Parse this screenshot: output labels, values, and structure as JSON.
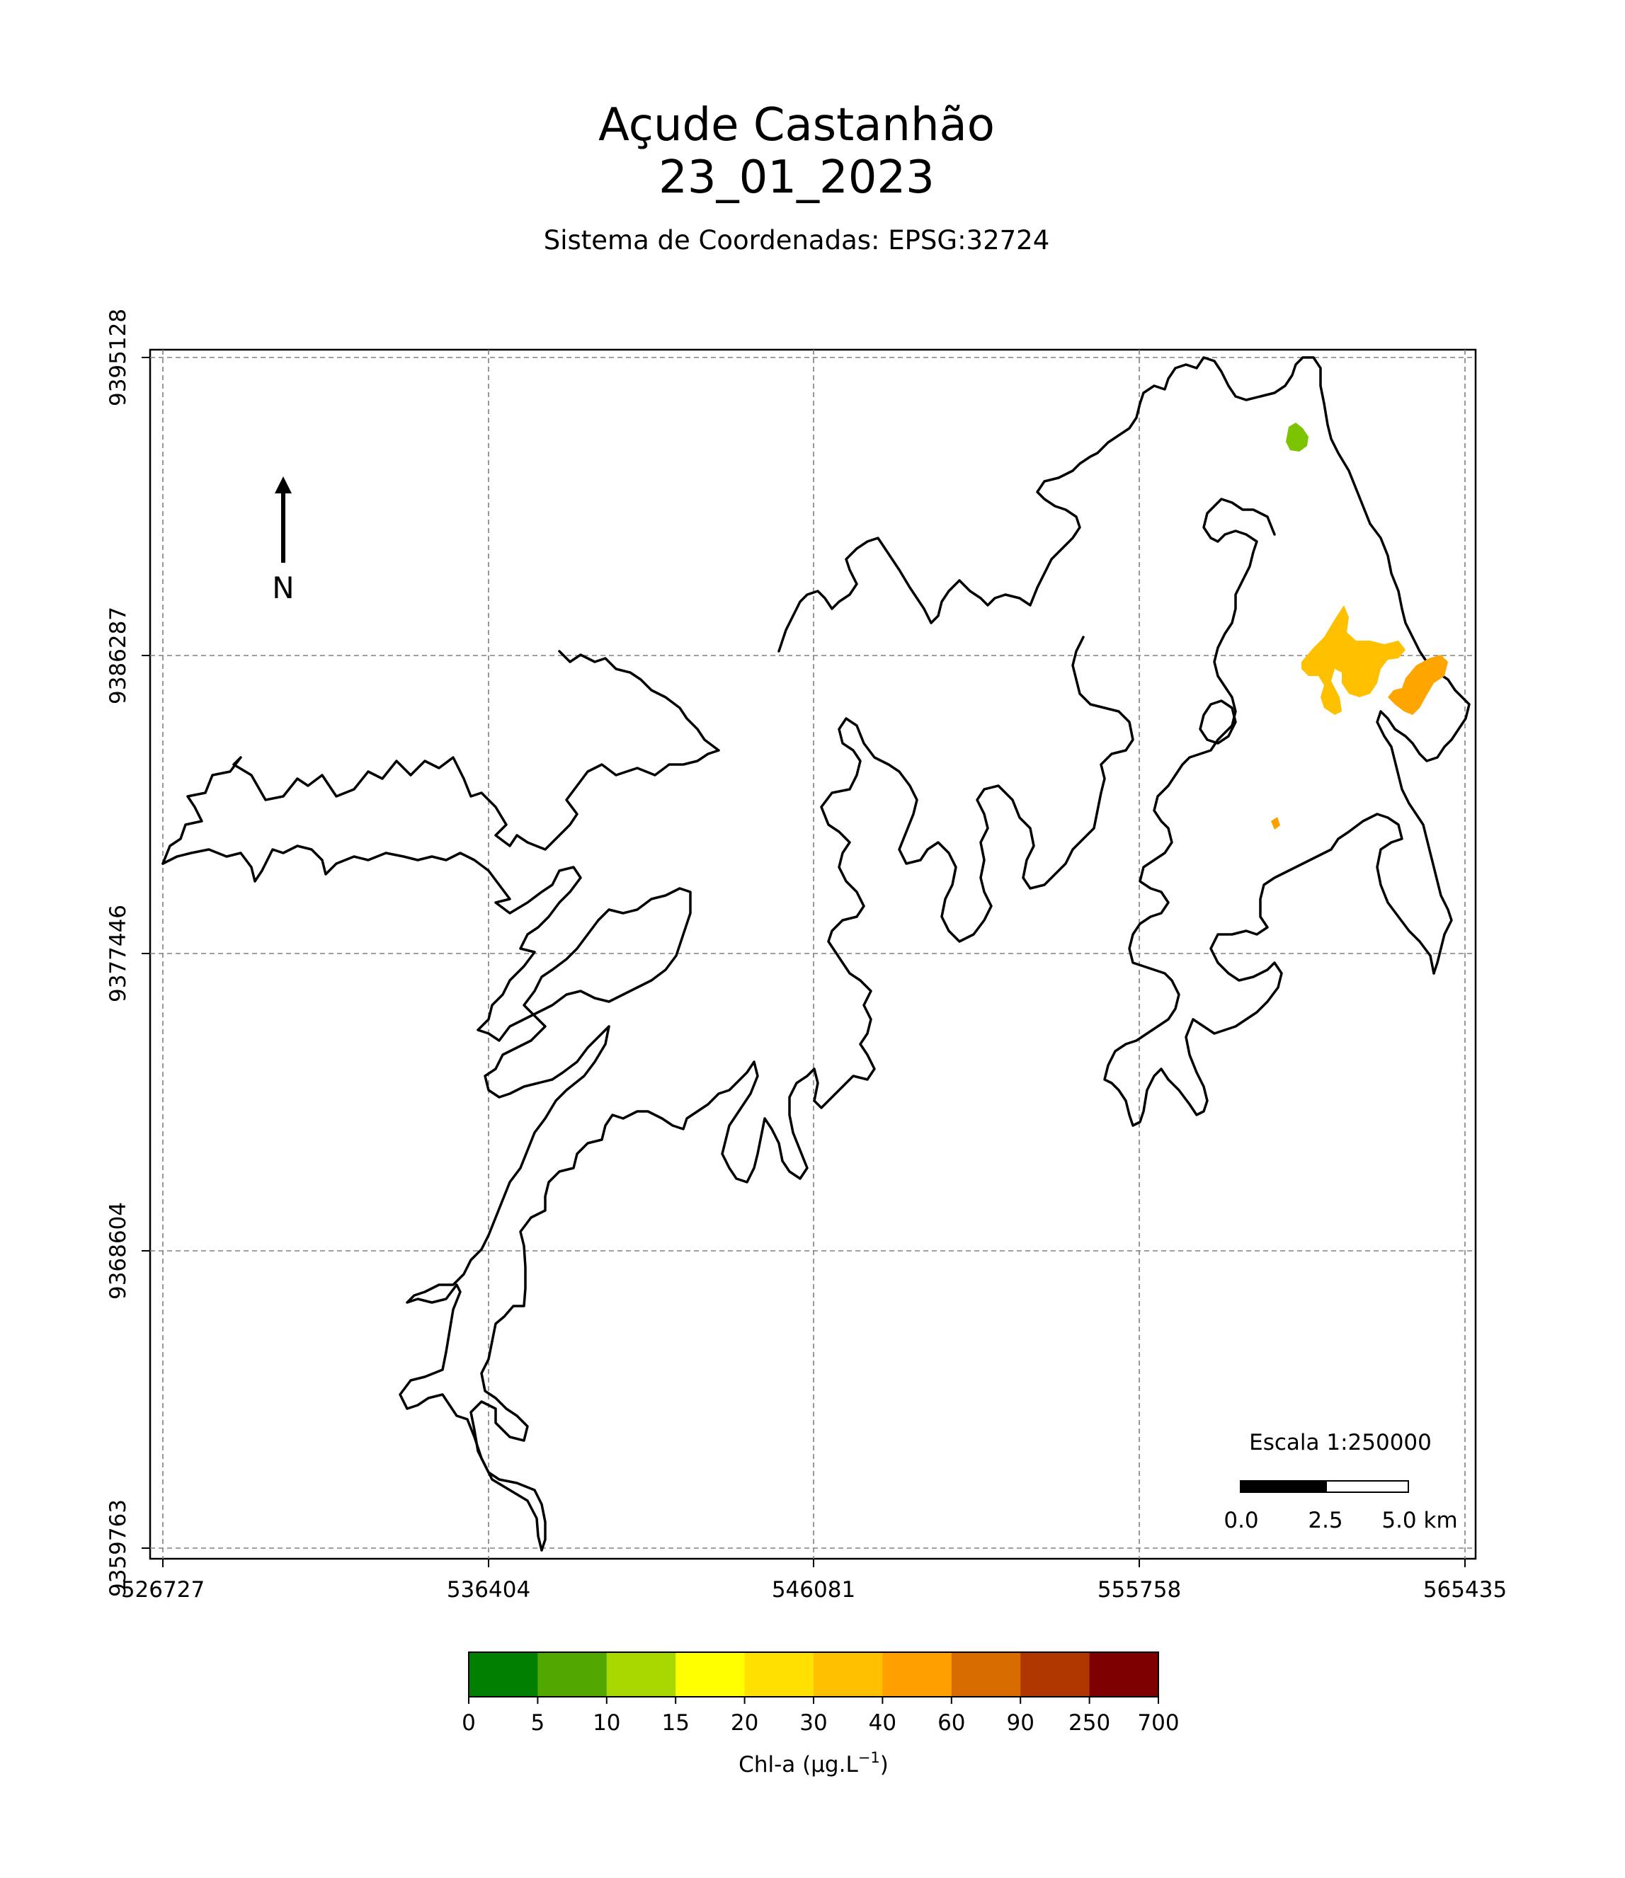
{
  "map": {
    "title_line1": "Açude Castanhão",
    "title_line2": "23_01_2023",
    "subtitle": "Sistema de Coordenadas: EPSG:32724",
    "x_ticks": [
      "526727",
      "536404",
      "546081",
      "555758",
      "565435"
    ],
    "y_ticks": [
      "9395128",
      "9386287",
      "9377446",
      "9368604",
      "9359763"
    ],
    "north_label": "N",
    "scale": {
      "title": "Escala 1:250000",
      "labels": [
        "0.0",
        "2.5",
        "5.0 km"
      ]
    },
    "outline_color": "#000000",
    "grid": true
  },
  "colorbar": {
    "label": "Chl-a (μg.L",
    "label_sup": "−1",
    "label_end": ")",
    "ticks": [
      "0",
      "5",
      "10",
      "15",
      "20",
      "30",
      "40",
      "60",
      "90",
      "250",
      "700"
    ],
    "colors": [
      "#007f00",
      "#52a800",
      "#a8d800",
      "#ffff00",
      "#ffe000",
      "#ffc000",
      "#ffa000",
      "#d86c00",
      "#b03800",
      "#7f0000"
    ]
  },
  "chl_patches": [
    {
      "class": "10-15",
      "color": "#7cc400"
    },
    {
      "class": "20-30",
      "color": "#ffc000"
    },
    {
      "class": "30-40",
      "color": "#ffa500"
    },
    {
      "class": "30-40",
      "color": "#ffa000"
    }
  ]
}
